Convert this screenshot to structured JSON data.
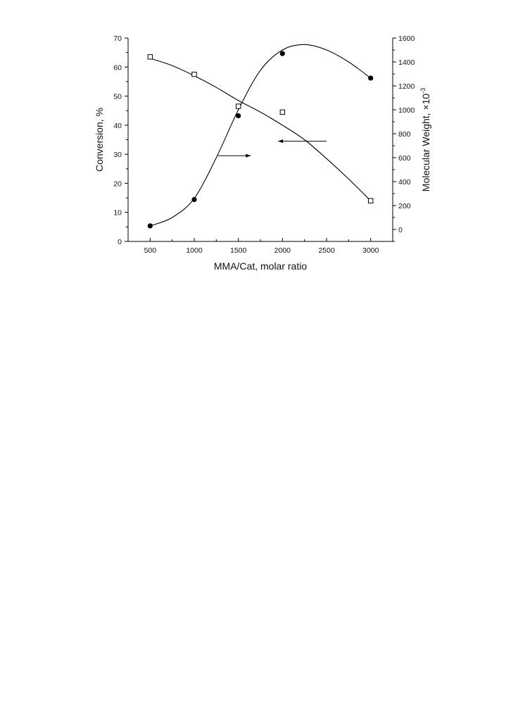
{
  "chart_data": {
    "type": "scatter",
    "xlabel": "MMA/Cat, molar ratio",
    "ylabel_left": "Conversion, %",
    "ylabel_right_main": "Molecular Weight, ×10",
    "ylabel_right_exponent": "-3",
    "xlim": [
      250,
      3250
    ],
    "ylim_left": [
      0,
      70
    ],
    "ylim_right": [
      -100,
      1600
    ],
    "x_ticks": [
      500,
      1000,
      1500,
      2000,
      2500,
      3000
    ],
    "y_left_ticks": [
      0,
      10,
      20,
      30,
      40,
      50,
      60,
      70
    ],
    "y_right_ticks": [
      0,
      200,
      400,
      600,
      800,
      1000,
      1200,
      1400,
      1600
    ],
    "grid": false,
    "legend": "none",
    "series": [
      {
        "marker": "open-square",
        "axis": "left",
        "x": [
          500,
          1000,
          1500,
          2000,
          3000
        ],
        "y": [
          63.5,
          57.5,
          46.5,
          44.5,
          14
        ],
        "curve_x": [
          500,
          750,
          1000,
          1250,
          1500,
          1750,
          2000,
          2250,
          2500,
          2750,
          3000
        ],
        "curve_y": [
          63,
          60.5,
          57,
          53,
          48.5,
          44.5,
          40,
          35,
          28.5,
          21.5,
          14
        ],
        "color": "#000000"
      },
      {
        "marker": "filled-circle",
        "axis": "right",
        "x": [
          500,
          1000,
          1500,
          2000,
          3000
        ],
        "y": [
          30,
          250,
          950,
          1470,
          1265
        ],
        "curve_x": [
          500,
          750,
          1000,
          1250,
          1500,
          1750,
          2000,
          2250,
          2500,
          2750,
          3000
        ],
        "curve_y": [
          30,
          100,
          260,
          600,
          1000,
          1330,
          1500,
          1545,
          1500,
          1400,
          1265
        ],
        "color": "#000000"
      }
    ],
    "annotations": [
      {
        "type": "arrow",
        "direction": "right",
        "points_to": "right-axis",
        "x": [
          1270,
          1640
        ],
        "y_axis": "left",
        "y": 29.5
      },
      {
        "type": "arrow",
        "direction": "left",
        "points_to": "left-axis",
        "x": [
          2500,
          1950
        ],
        "y_axis": "left",
        "y": 34.5
      }
    ]
  }
}
